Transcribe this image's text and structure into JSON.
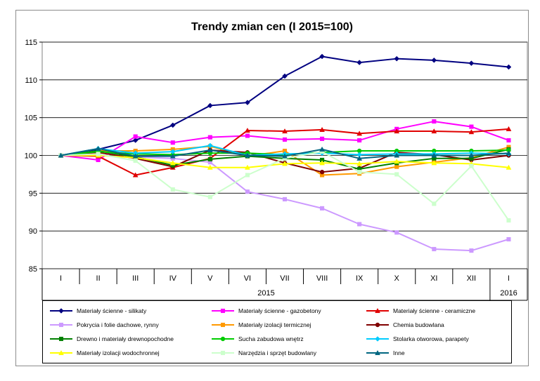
{
  "chart_data": {
    "type": "line",
    "title": "Trendy zmian cen (I 2015=100)",
    "categories": [
      "I",
      "II",
      "III",
      "IV",
      "V",
      "VI",
      "VII",
      "VIII",
      "IX",
      "X",
      "XI",
      "XII",
      "I"
    ],
    "year_groups": [
      {
        "label": "2015",
        "from": 0,
        "to": 11
      },
      {
        "label": "2016",
        "from": 12,
        "to": 12
      }
    ],
    "ylim": [
      85,
      115
    ],
    "yticks": [
      85,
      90,
      95,
      100,
      105,
      110,
      115
    ],
    "grid": true,
    "legend_position": "bottom",
    "series": [
      {
        "name": "Materiały ścienne - silikaty",
        "color": "#000080",
        "marker": "diamond",
        "values": [
          100,
          100.8,
          102.0,
          104.0,
          106.6,
          107.0,
          110.5,
          113.1,
          112.3,
          112.8,
          112.6,
          112.2,
          111.7
        ]
      },
      {
        "name": "Materiały ścienne - gazobetony",
        "color": "#ff00ff",
        "marker": "square",
        "values": [
          100,
          99.4,
          102.5,
          101.7,
          102.4,
          102.6,
          102.1,
          102.2,
          102.0,
          103.5,
          104.5,
          103.8,
          102.0
        ]
      },
      {
        "name": "Materiały ścienne - ceramiczne",
        "color": "#e00000",
        "marker": "triangle",
        "values": [
          100,
          99.9,
          97.4,
          98.4,
          99.6,
          103.3,
          103.2,
          103.4,
          102.9,
          103.2,
          103.2,
          103.1,
          103.5
        ]
      },
      {
        "name": "Pokrycia i folie dachowe, rynny",
        "color": "#cc99ff",
        "marker": "square",
        "values": [
          100,
          100.6,
          99.8,
          99.6,
          99.1,
          95.2,
          94.2,
          93.0,
          90.9,
          89.8,
          87.6,
          87.4,
          88.9
        ]
      },
      {
        "name": "Materiały izolacji termicznej",
        "color": "#ff9900",
        "marker": "square",
        "values": [
          100,
          100.6,
          100.6,
          100.8,
          101.2,
          99.9,
          100.6,
          97.4,
          97.6,
          98.5,
          99.1,
          99.7,
          101.1
        ]
      },
      {
        "name": "Chemia budowlana",
        "color": "#800000",
        "marker": "circle",
        "values": [
          100,
          100.4,
          99.6,
          98.5,
          100.7,
          100.4,
          99.0,
          97.8,
          98.3,
          100.4,
          100.1,
          99.4,
          100.0
        ]
      },
      {
        "name": "Drewno i materiały drewnopochodne",
        "color": "#008000",
        "marker": "square",
        "values": [
          100,
          100.6,
          99.8,
          98.7,
          99.5,
          99.9,
          99.6,
          99.4,
          98.2,
          99.0,
          99.6,
          99.6,
          100.8
        ]
      },
      {
        "name": "Sucha zabudowa wnętrz",
        "color": "#00cc00",
        "marker": "circle",
        "values": [
          100,
          100.5,
          100.2,
          100.1,
          100.3,
          100.3,
          100.1,
          100.4,
          100.6,
          100.6,
          100.6,
          100.6,
          100.7
        ]
      },
      {
        "name": "Stolarka otworowa, parapety",
        "color": "#00ccff",
        "marker": "diamond",
        "values": [
          100,
          100.9,
          100.3,
          100.5,
          101.3,
          100.0,
          100.2,
          100.3,
          100.1,
          100.2,
          100.2,
          100.3,
          100.2
        ]
      },
      {
        "name": "Materiały izolacji wodochronnej",
        "color": "#ffff00",
        "marker": "triangle",
        "values": [
          100,
          100.0,
          99.7,
          99.0,
          98.4,
          98.4,
          98.9,
          99.0,
          98.9,
          99.2,
          99.0,
          98.9,
          98.4
        ]
      },
      {
        "name": "Narzędzia i sprzęt budowlany",
        "color": "#ccffcc",
        "marker": "square",
        "values": [
          100,
          100.2,
          99.3,
          95.5,
          94.5,
          97.4,
          99.6,
          100.5,
          97.8,
          97.5,
          93.6,
          98.6,
          91.4
        ]
      },
      {
        "name": "Inne",
        "color": "#006680",
        "marker": "triangle",
        "values": [
          100,
          100.9,
          99.9,
          99.9,
          100.7,
          100.0,
          99.9,
          100.8,
          99.6,
          100.0,
          100.0,
          100.0,
          100.3
        ]
      }
    ]
  }
}
